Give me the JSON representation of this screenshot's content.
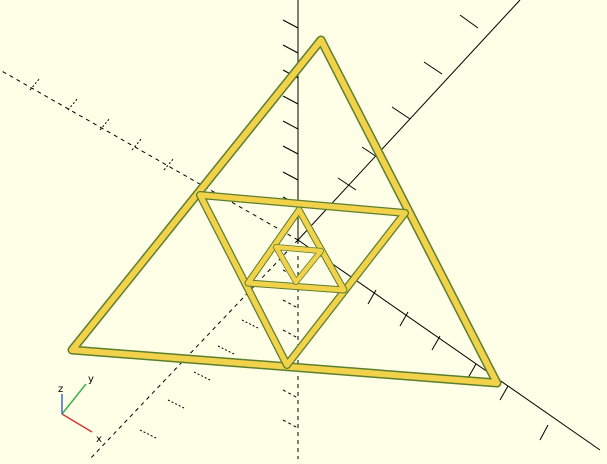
{
  "app": {
    "view": "3d-preview"
  },
  "colors": {
    "background": "#fffee6",
    "model_fill": "#f2d24a",
    "model_edge": "#c9a93a",
    "model_shadow": "#5c7f2c",
    "axis": "#000000",
    "axis_x": "#d23a3a",
    "axis_y": "#3ab44a",
    "axis_z": "#3a68d2"
  },
  "orientation_gizmo": {
    "x_label": "x",
    "y_label": "y",
    "z_label": "z"
  },
  "model": {
    "shape": "nested-triangle-frame",
    "levels": 4
  }
}
